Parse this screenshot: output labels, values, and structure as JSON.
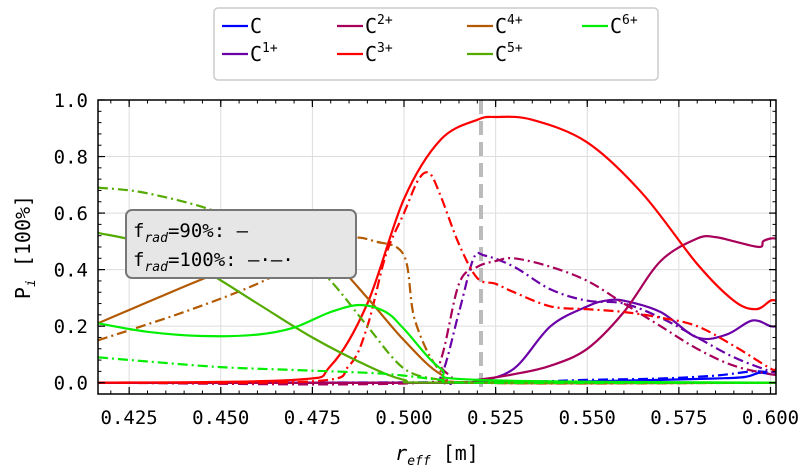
{
  "chart_data": {
    "type": "line",
    "xlabel": "r",
    "xlabel_sub": "eff",
    "xlabel_unit": "[m]",
    "ylabel": "P",
    "ylabel_sub": "i",
    "ylabel_unit": "[100%]",
    "xlim": [
      0.4165,
      0.6015
    ],
    "ylim": [
      -0.04,
      1.0
    ],
    "x_ticks": [
      "0.425",
      "0.450",
      "0.475",
      "0.500",
      "0.525",
      "0.550",
      "0.575",
      "0.600"
    ],
    "y_ticks": [
      "0.0",
      "0.2",
      "0.4",
      "0.6",
      "0.8",
      "1.0"
    ],
    "grid": true,
    "vline": {
      "x": 0.521,
      "color": "#bbbbbb",
      "style": "dashed"
    },
    "legend": {
      "placement": "top-center",
      "entries": [
        {
          "base": "C",
          "sup": "",
          "color": "#0000ff"
        },
        {
          "base": "C",
          "sup": "1+",
          "color": "#6a00a8"
        },
        {
          "base": "C",
          "sup": "2+",
          "color": "#a8005a"
        },
        {
          "base": "C",
          "sup": "3+",
          "color": "#ff0000"
        },
        {
          "base": "C",
          "sup": "4+",
          "color": "#b35900"
        },
        {
          "base": "C",
          "sup": "5+",
          "color": "#55aa00"
        },
        {
          "base": "C",
          "sup": "6+",
          "color": "#00ee00"
        }
      ]
    },
    "annotation": {
      "line1_base": "f",
      "line1_sub": "rad",
      "line1_rest": "=90%: —",
      "line2_base": "f",
      "line2_sub": "rad",
      "line2_rest": "=100%: —·—·"
    },
    "series": [
      {
        "color": "#0000ff",
        "style": "solid",
        "points": [
          [
            0.4165,
            0
          ],
          [
            0.52,
            0
          ],
          [
            0.55,
            0.005
          ],
          [
            0.57,
            0.01
          ],
          [
            0.585,
            0.015
          ],
          [
            0.593,
            0.02
          ],
          [
            0.597,
            0.035
          ],
          [
            0.6,
            0.03
          ]
        ]
      },
      {
        "color": "#0000ff",
        "style": "dashdot",
        "points": [
          [
            0.4165,
            0
          ],
          [
            0.52,
            0.002
          ],
          [
            0.55,
            0.01
          ],
          [
            0.57,
            0.015
          ],
          [
            0.585,
            0.025
          ],
          [
            0.595,
            0.04
          ],
          [
            0.6,
            0.035
          ]
        ]
      },
      {
        "color": "#6a00a8",
        "style": "solid",
        "points": [
          [
            0.4165,
            0
          ],
          [
            0.51,
            0
          ],
          [
            0.52,
            0.005
          ],
          [
            0.53,
            0.05
          ],
          [
            0.54,
            0.2
          ],
          [
            0.55,
            0.27
          ],
          [
            0.555,
            0.29
          ],
          [
            0.56,
            0.29
          ],
          [
            0.57,
            0.25
          ],
          [
            0.58,
            0.16
          ],
          [
            0.588,
            0.17
          ],
          [
            0.595,
            0.22
          ],
          [
            0.6,
            0.2
          ],
          [
            0.6015,
            0.2
          ]
        ]
      },
      {
        "color": "#6a00a8",
        "style": "dashdot",
        "points": [
          [
            0.4165,
            0
          ],
          [
            0.505,
            0
          ],
          [
            0.51,
            0.02
          ],
          [
            0.515,
            0.25
          ],
          [
            0.519,
            0.44
          ],
          [
            0.522,
            0.45
          ],
          [
            0.53,
            0.41
          ],
          [
            0.54,
            0.33
          ],
          [
            0.55,
            0.29
          ],
          [
            0.56,
            0.28
          ],
          [
            0.57,
            0.23
          ],
          [
            0.58,
            0.16
          ],
          [
            0.59,
            0.09
          ],
          [
            0.6,
            0.04
          ],
          [
            0.6015,
            0.04
          ]
        ]
      },
      {
        "color": "#a8005a",
        "style": "solid",
        "points": [
          [
            0.4165,
            0
          ],
          [
            0.51,
            0
          ],
          [
            0.52,
            0.01
          ],
          [
            0.53,
            0.03
          ],
          [
            0.54,
            0.06
          ],
          [
            0.55,
            0.12
          ],
          [
            0.56,
            0.25
          ],
          [
            0.57,
            0.43
          ],
          [
            0.58,
            0.51
          ],
          [
            0.585,
            0.515
          ],
          [
            0.59,
            0.5
          ],
          [
            0.597,
            0.48
          ],
          [
            0.598,
            0.5
          ],
          [
            0.6,
            0.51
          ],
          [
            0.6015,
            0.51
          ]
        ]
      },
      {
        "color": "#a8005a",
        "style": "dashdot",
        "points": [
          [
            0.4165,
            0
          ],
          [
            0.505,
            0
          ],
          [
            0.51,
            0.08
          ],
          [
            0.515,
            0.35
          ],
          [
            0.52,
            0.41
          ],
          [
            0.525,
            0.43
          ],
          [
            0.53,
            0.44
          ],
          [
            0.54,
            0.41
          ],
          [
            0.55,
            0.36
          ],
          [
            0.56,
            0.28
          ],
          [
            0.57,
            0.2
          ],
          [
            0.58,
            0.12
          ],
          [
            0.59,
            0.06
          ],
          [
            0.6,
            0.03
          ],
          [
            0.6015,
            0.03
          ]
        ]
      },
      {
        "color": "#ff0000",
        "style": "solid",
        "points": [
          [
            0.4165,
            0
          ],
          [
            0.47,
            0.01
          ],
          [
            0.48,
            0.06
          ],
          [
            0.49,
            0.28
          ],
          [
            0.5,
            0.65
          ],
          [
            0.51,
            0.86
          ],
          [
            0.52,
            0.93
          ],
          [
            0.525,
            0.94
          ],
          [
            0.535,
            0.93
          ],
          [
            0.55,
            0.85
          ],
          [
            0.565,
            0.67
          ],
          [
            0.58,
            0.42
          ],
          [
            0.59,
            0.29
          ],
          [
            0.596,
            0.26
          ],
          [
            0.6,
            0.29
          ],
          [
            0.6015,
            0.29
          ]
        ]
      },
      {
        "color": "#ff0000",
        "style": "dashdot",
        "points": [
          [
            0.4165,
            0
          ],
          [
            0.475,
            0.005
          ],
          [
            0.485,
            0.06
          ],
          [
            0.49,
            0.2
          ],
          [
            0.495,
            0.45
          ],
          [
            0.5,
            0.6
          ],
          [
            0.504,
            0.72
          ],
          [
            0.507,
            0.74
          ],
          [
            0.51,
            0.66
          ],
          [
            0.515,
            0.49
          ],
          [
            0.52,
            0.37
          ],
          [
            0.525,
            0.35
          ],
          [
            0.53,
            0.32
          ],
          [
            0.54,
            0.27
          ],
          [
            0.55,
            0.26
          ],
          [
            0.56,
            0.25
          ],
          [
            0.57,
            0.23
          ],
          [
            0.58,
            0.2
          ],
          [
            0.59,
            0.13
          ],
          [
            0.6,
            0.05
          ],
          [
            0.6015,
            0.05
          ]
        ]
      },
      {
        "color": "#b35900",
        "style": "solid",
        "points": [
          [
            0.4165,
            0.21
          ],
          [
            0.44,
            0.34
          ],
          [
            0.455,
            0.42
          ],
          [
            0.465,
            0.49
          ],
          [
            0.472,
            0.5
          ],
          [
            0.48,
            0.44
          ],
          [
            0.49,
            0.3
          ],
          [
            0.5,
            0.15
          ],
          [
            0.51,
            0.03
          ],
          [
            0.52,
            0
          ],
          [
            0.6015,
            0
          ]
        ]
      },
      {
        "color": "#b35900",
        "style": "dashdot",
        "points": [
          [
            0.4165,
            0.15
          ],
          [
            0.44,
            0.25
          ],
          [
            0.46,
            0.35
          ],
          [
            0.475,
            0.45
          ],
          [
            0.485,
            0.51
          ],
          [
            0.492,
            0.5
          ],
          [
            0.5,
            0.45
          ],
          [
            0.503,
            0.22
          ],
          [
            0.51,
            0.04
          ],
          [
            0.52,
            0
          ],
          [
            0.6015,
            0
          ]
        ]
      },
      {
        "color": "#55aa00",
        "style": "solid",
        "points": [
          [
            0.4165,
            0.53
          ],
          [
            0.43,
            0.49
          ],
          [
            0.445,
            0.4
          ],
          [
            0.46,
            0.28
          ],
          [
            0.475,
            0.16
          ],
          [
            0.49,
            0.06
          ],
          [
            0.5,
            0.01
          ],
          [
            0.51,
            0
          ],
          [
            0.6015,
            0
          ]
        ]
      },
      {
        "color": "#55aa00",
        "style": "dashdot",
        "points": [
          [
            0.4165,
            0.69
          ],
          [
            0.43,
            0.67
          ],
          [
            0.45,
            0.6
          ],
          [
            0.47,
            0.48
          ],
          [
            0.48,
            0.36
          ],
          [
            0.49,
            0.2
          ],
          [
            0.5,
            0.05
          ],
          [
            0.51,
            0.01
          ],
          [
            0.52,
            0
          ],
          [
            0.6015,
            0
          ]
        ]
      },
      {
        "color": "#00ee00",
        "style": "solid",
        "points": [
          [
            0.4165,
            0.21
          ],
          [
            0.43,
            0.18
          ],
          [
            0.445,
            0.165
          ],
          [
            0.46,
            0.17
          ],
          [
            0.47,
            0.195
          ],
          [
            0.48,
            0.25
          ],
          [
            0.488,
            0.275
          ],
          [
            0.495,
            0.25
          ],
          [
            0.5,
            0.19
          ],
          [
            0.51,
            0.05
          ],
          [
            0.52,
            0.01
          ],
          [
            0.6015,
            0
          ]
        ]
      },
      {
        "color": "#00ee00",
        "style": "dashdot",
        "points": [
          [
            0.4165,
            0.09
          ],
          [
            0.43,
            0.075
          ],
          [
            0.45,
            0.055
          ],
          [
            0.47,
            0.045
          ],
          [
            0.49,
            0.035
          ],
          [
            0.5,
            0.025
          ],
          [
            0.51,
            0.01
          ],
          [
            0.52,
            0
          ],
          [
            0.6015,
            0
          ]
        ]
      }
    ]
  }
}
